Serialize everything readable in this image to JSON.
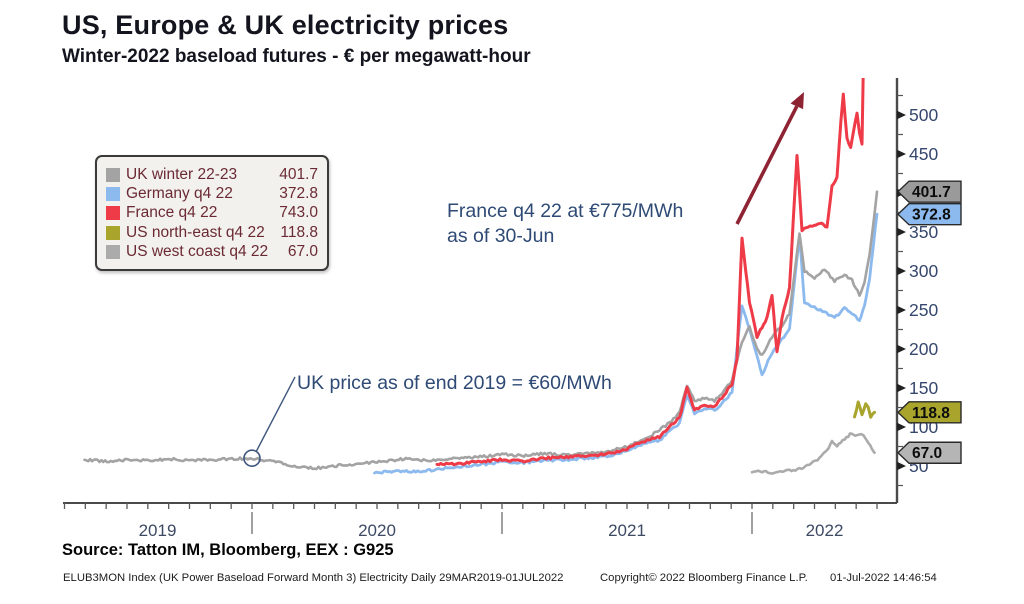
{
  "header": {
    "title": "US, Europe & UK electricity prices",
    "subtitle": "Winter-2022 baseload futures - € per megawatt-hour"
  },
  "annotations": {
    "france_line1": "France q4 22 at €775/MWh",
    "france_line2": "as of 30-Jun",
    "uk": "UK price as of end 2019 = €60/MWh"
  },
  "footer": {
    "source": "Source: Tatton IM, Bloomberg, EEX : G925",
    "index_info": "ELUB3MON Index (UK Power Baseload Forward Month 3) Electricity  Daily 29MAR2019-01JUL2022",
    "copyright": "Copyright© 2022 Bloomberg Finance L.P.",
    "datetime": "01-Jul-2022 14:46:54"
  },
  "chart_data": {
    "type": "line",
    "title": "US, Europe & UK electricity prices",
    "subtitle": "Winter-2022 baseload futures - € per megawatt-hour",
    "xlabel": "",
    "ylabel": "€ per megawatt-hour",
    "x_range_note": "Daily 29MAR2019-01JUL2022",
    "x_range_years": [
      2019.24,
      2022.5
    ],
    "ylim": [
      25,
      545
    ],
    "grid": false,
    "legend_position": "top-left",
    "x_axis": {
      "labels": [
        "2019",
        "2020",
        "2021",
        "2022"
      ]
    },
    "y_axis": {
      "ticks": [
        50,
        100,
        150,
        200,
        250,
        300,
        350,
        400,
        450,
        500
      ],
      "minor_step": 25,
      "minor_min": 25,
      "minor_max": 525,
      "position": "right"
    },
    "series": [
      {
        "name": "UK winter 22-23",
        "slug": "uk-winter-22-23",
        "legend_value": "401.7",
        "last": 401.7,
        "color": "#a3a3a3",
        "points": [
          [
            2019.33,
            58
          ],
          [
            2019.42,
            56
          ],
          [
            2019.5,
            58
          ],
          [
            2019.58,
            57
          ],
          [
            2019.67,
            59
          ],
          [
            2019.75,
            57
          ],
          [
            2019.83,
            58
          ],
          [
            2019.92,
            59
          ],
          [
            2020.0,
            60
          ],
          [
            2020.08,
            56
          ],
          [
            2020.17,
            50
          ],
          [
            2020.25,
            47
          ],
          [
            2020.33,
            50
          ],
          [
            2020.42,
            53
          ],
          [
            2020.5,
            55
          ],
          [
            2020.58,
            58
          ],
          [
            2020.63,
            60
          ],
          [
            2020.67,
            57
          ],
          [
            2020.75,
            58
          ],
          [
            2020.83,
            60
          ],
          [
            2020.92,
            62
          ],
          [
            2021.0,
            65
          ],
          [
            2021.08,
            63
          ],
          [
            2021.17,
            66
          ],
          [
            2021.25,
            64
          ],
          [
            2021.33,
            66
          ],
          [
            2021.42,
            68
          ],
          [
            2021.5,
            75
          ],
          [
            2021.58,
            86
          ],
          [
            2021.63,
            96
          ],
          [
            2021.67,
            105
          ],
          [
            2021.71,
            118
          ],
          [
            2021.74,
            154
          ],
          [
            2021.77,
            133
          ],
          [
            2021.81,
            137
          ],
          [
            2021.85,
            134
          ],
          [
            2021.88,
            142
          ],
          [
            2021.92,
            160
          ],
          [
            2021.96,
            210
          ],
          [
            2021.99,
            228
          ],
          [
            2022.02,
            200
          ],
          [
            2022.04,
            192
          ],
          [
            2022.08,
            215
          ],
          [
            2022.12,
            230
          ],
          [
            2022.15,
            245
          ],
          [
            2022.19,
            349
          ],
          [
            2022.21,
            300
          ],
          [
            2022.25,
            291
          ],
          [
            2022.29,
            302
          ],
          [
            2022.33,
            287
          ],
          [
            2022.37,
            296
          ],
          [
            2022.4,
            288
          ],
          [
            2022.43,
            269
          ],
          [
            2022.45,
            285
          ],
          [
            2022.47,
            320
          ],
          [
            2022.5,
            401.7
          ]
        ]
      },
      {
        "name": "Germany q4 22",
        "slug": "germany-q4-22",
        "legend_value": "372.8",
        "last": 372.8,
        "color": "#8cbaee",
        "points": [
          [
            2020.49,
            41
          ],
          [
            2020.58,
            44
          ],
          [
            2020.67,
            43
          ],
          [
            2020.75,
            46
          ],
          [
            2020.83,
            49
          ],
          [
            2020.92,
            52
          ],
          [
            2021.0,
            55
          ],
          [
            2021.08,
            54
          ],
          [
            2021.17,
            57
          ],
          [
            2021.25,
            58
          ],
          [
            2021.33,
            60
          ],
          [
            2021.42,
            62
          ],
          [
            2021.5,
            70
          ],
          [
            2021.58,
            80
          ],
          [
            2021.63,
            83
          ],
          [
            2021.67,
            95
          ],
          [
            2021.71,
            105
          ],
          [
            2021.74,
            140
          ],
          [
            2021.77,
            118
          ],
          [
            2021.81,
            124
          ],
          [
            2021.85,
            122
          ],
          [
            2021.88,
            130
          ],
          [
            2021.92,
            145
          ],
          [
            2021.96,
            256
          ],
          [
            2021.99,
            225
          ],
          [
            2022.02,
            190
          ],
          [
            2022.04,
            167
          ],
          [
            2022.08,
            195
          ],
          [
            2022.12,
            212
          ],
          [
            2022.15,
            225
          ],
          [
            2022.19,
            346
          ],
          [
            2022.21,
            260
          ],
          [
            2022.25,
            253
          ],
          [
            2022.29,
            248
          ],
          [
            2022.33,
            240
          ],
          [
            2022.37,
            252
          ],
          [
            2022.4,
            245
          ],
          [
            2022.43,
            237
          ],
          [
            2022.45,
            255
          ],
          [
            2022.47,
            290
          ],
          [
            2022.5,
            372.8
          ]
        ]
      },
      {
        "name": "France q4 22",
        "slug": "france-q4-22",
        "legend_value": "743.0",
        "last": 743.0,
        "color": "#ee3b47",
        "points": [
          [
            2020.74,
            52
          ],
          [
            2020.83,
            53
          ],
          [
            2020.92,
            56
          ],
          [
            2021.0,
            58
          ],
          [
            2021.08,
            56
          ],
          [
            2021.17,
            60
          ],
          [
            2021.25,
            61
          ],
          [
            2021.33,
            63
          ],
          [
            2021.42,
            65
          ],
          [
            2021.5,
            72
          ],
          [
            2021.58,
            83
          ],
          [
            2021.63,
            87
          ],
          [
            2021.67,
            100
          ],
          [
            2021.71,
            112
          ],
          [
            2021.74,
            150
          ],
          [
            2021.77,
            122
          ],
          [
            2021.81,
            128
          ],
          [
            2021.85,
            126
          ],
          [
            2021.88,
            138
          ],
          [
            2021.92,
            155
          ],
          [
            2021.94,
            188
          ],
          [
            2021.96,
            342
          ],
          [
            2021.99,
            260
          ],
          [
            2022.02,
            215
          ],
          [
            2022.04,
            228
          ],
          [
            2022.06,
            240
          ],
          [
            2022.08,
            269
          ],
          [
            2022.1,
            196
          ],
          [
            2022.12,
            240
          ],
          [
            2022.15,
            278
          ],
          [
            2022.18,
            449
          ],
          [
            2022.2,
            352
          ],
          [
            2022.24,
            358
          ],
          [
            2022.28,
            362
          ],
          [
            2022.3,
            356
          ],
          [
            2022.32,
            408
          ],
          [
            2022.34,
            419
          ],
          [
            2022.355,
            490
          ],
          [
            2022.365,
            526
          ],
          [
            2022.38,
            470
          ],
          [
            2022.395,
            459
          ],
          [
            2022.42,
            503
          ],
          [
            2022.43,
            478
          ],
          [
            2022.44,
            462
          ],
          [
            2022.455,
            743
          ]
        ]
      },
      {
        "name": "US north-east q4 22",
        "slug": "us-north-east-q4-22",
        "legend_value": "118.8",
        "last": 118.8,
        "color": "#a8a42c",
        "points": [
          [
            2022.41,
            113
          ],
          [
            2022.425,
            132
          ],
          [
            2022.44,
            117
          ],
          [
            2022.455,
            130
          ],
          [
            2022.465,
            126
          ],
          [
            2022.475,
            112
          ],
          [
            2022.49,
            118.8
          ]
        ]
      },
      {
        "name": "US west coast q4 22",
        "slug": "us-west-coast-q4-22",
        "legend_value": "67.0",
        "last": 67.0,
        "color": "#ababab",
        "points": [
          [
            2022.0,
            42
          ],
          [
            2022.04,
            43
          ],
          [
            2022.08,
            41
          ],
          [
            2022.12,
            43
          ],
          [
            2022.15,
            44
          ],
          [
            2022.19,
            46
          ],
          [
            2022.23,
            52
          ],
          [
            2022.27,
            60
          ],
          [
            2022.3,
            70
          ],
          [
            2022.32,
            81
          ],
          [
            2022.34,
            75
          ],
          [
            2022.37,
            85
          ],
          [
            2022.4,
            92
          ],
          [
            2022.42,
            89
          ],
          [
            2022.44,
            91
          ],
          [
            2022.46,
            82
          ],
          [
            2022.48,
            72
          ],
          [
            2022.49,
            67
          ]
        ]
      }
    ],
    "price_tags": [
      {
        "label": "401.7",
        "value": 401.7,
        "color": "#9a9a9a"
      },
      {
        "label": "372.8",
        "value": 372.8,
        "color": "#8cbaee"
      },
      {
        "label": "118.8",
        "value": 118.8,
        "color": "#a8a42c"
      },
      {
        "label": "67.0",
        "value": 67.0,
        "color": "#b5b5b5"
      }
    ]
  }
}
